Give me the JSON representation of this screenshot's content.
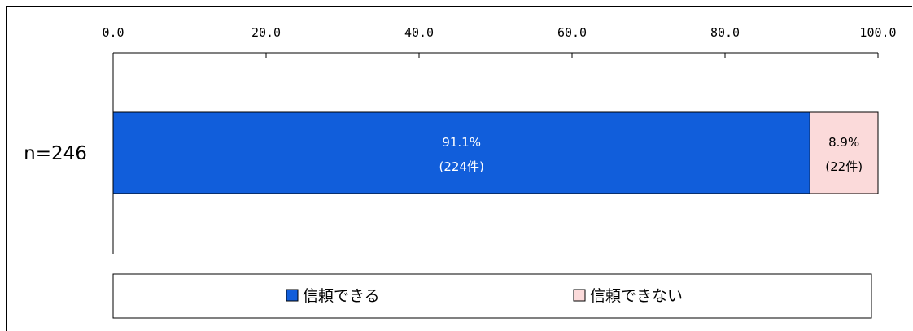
{
  "chart_data": {
    "type": "bar",
    "orientation": "horizontal",
    "stacked": true,
    "xlim": [
      0,
      100
    ],
    "x_ticks": [
      "0.0",
      "20.0",
      "40.0",
      "60.0",
      "80.0",
      "100.0"
    ],
    "x_axis_position": "top",
    "grid": false,
    "categories": [
      "n=246"
    ],
    "series": [
      {
        "name": "信頼できる",
        "values": [
          91.1
        ],
        "color": "#115edb",
        "label_color": "#ffffff",
        "labels": [
          [
            "91.1%",
            "(224件)"
          ]
        ]
      },
      {
        "name": "信頼できない",
        "values": [
          8.9
        ],
        "color": "#fbdada",
        "label_color": "#000000",
        "labels": [
          [
            "8.9%",
            "(22件)"
          ]
        ]
      }
    ],
    "legend": {
      "position": "bottom",
      "marker": "square"
    }
  }
}
